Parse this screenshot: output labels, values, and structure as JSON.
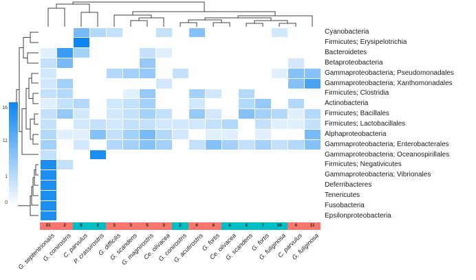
{
  "chart_data": {
    "type": "heatmap",
    "title": "",
    "rows": [
      "Cyanobacteria",
      "Firmicutes; Erysipelotrichia",
      "Bacteroidetes",
      "Betaproteobacteria",
      "Gammaproteobacteria; Pseudomonadales",
      "Gammaproteobacteria; Xanthomonadales",
      "Firmicutes; Clostridia",
      "Actinobacteria",
      "Firmicutes; Bacillales",
      "Firmicutes; Lactobacillales",
      "Alphaproteobacteria",
      "Gammaproteobacteria; Enterobacterales",
      "Gammaproteobacteria; Oceanospirillales",
      "Firmicutes; Negativicutes",
      "Gammaproteobacteria; Vibrionales",
      "Deferribacteres",
      "Tenericutes",
      "Fusobacteria",
      "Epsilonproteobacteria"
    ],
    "columns": [
      "G. septentrionalis",
      "G. conirostris",
      "C. parvulus",
      "P. crassirostris",
      "G. difficilis",
      "G. scandens",
      "G. magnirostris",
      "Ce. olivacea",
      "G. conirostris",
      "G. acutirostris",
      "G. fortis",
      "Ce. olivacea",
      "G. scandens",
      "G. fortis",
      "G. fuliginosa",
      "C. parvulus",
      "G. fuliginosa"
    ],
    "column_sample_counts": [
      31,
      2,
      6,
      3,
      3,
      3,
      5,
      3,
      2,
      6,
      4,
      4,
      3,
      7,
      16,
      4,
      11
    ],
    "column_group_colors": [
      "red",
      "red",
      "teal",
      "teal",
      "red",
      "red",
      "red",
      "red",
      "teal",
      "red",
      "red",
      "teal",
      "teal",
      "teal",
      "teal",
      "red",
      "red"
    ],
    "values": [
      [
        0,
        0,
        9,
        5,
        4,
        0,
        0,
        4,
        0,
        8,
        0,
        0,
        0,
        0,
        3,
        0,
        0
      ],
      [
        0,
        0,
        16,
        0,
        0,
        0,
        0,
        0,
        0,
        0,
        0,
        0,
        0,
        0,
        0,
        0,
        0
      ],
      [
        2,
        13,
        6,
        0,
        0,
        0,
        4,
        2,
        0,
        0,
        0,
        0,
        0,
        0,
        0,
        0,
        0
      ],
      [
        4,
        9,
        0,
        0,
        0,
        0,
        7,
        0,
        0,
        0,
        0,
        0,
        0,
        0,
        0,
        3,
        0
      ],
      [
        3,
        0,
        0,
        0,
        5,
        6,
        7,
        0,
        4,
        0,
        0,
        0,
        0,
        0,
        2,
        8,
        8
      ],
      [
        3,
        6,
        0,
        0,
        0,
        0,
        0,
        3,
        0,
        0,
        0,
        0,
        0,
        0,
        0,
        8,
        12
      ],
      [
        4,
        5,
        0,
        0,
        0,
        2,
        7,
        0,
        0,
        6,
        3,
        0,
        5,
        0,
        0,
        0,
        0
      ],
      [
        2,
        4,
        5,
        0,
        3,
        4,
        6,
        0,
        0,
        3,
        0,
        0,
        5,
        7,
        0,
        5,
        0
      ],
      [
        4,
        7,
        3,
        0,
        3,
        4,
        6,
        4,
        0,
        7,
        3,
        0,
        8,
        6,
        5,
        2,
        5
      ],
      [
        4,
        0,
        3,
        4,
        3,
        4,
        4,
        3,
        3,
        3,
        4,
        5,
        0,
        4,
        2,
        2,
        4
      ],
      [
        5,
        2,
        2,
        8,
        4,
        6,
        9,
        5,
        3,
        0,
        2,
        2,
        0,
        2,
        0,
        0,
        9
      ],
      [
        6,
        0,
        3,
        0,
        5,
        6,
        8,
        6,
        0,
        4,
        8,
        6,
        4,
        6,
        4,
        5,
        8
      ],
      [
        4,
        0,
        0,
        15,
        0,
        0,
        0,
        0,
        0,
        0,
        0,
        0,
        0,
        0,
        0,
        0,
        0
      ],
      [
        15,
        4,
        0,
        0,
        0,
        0,
        0,
        0,
        0,
        0,
        0,
        0,
        0,
        0,
        0,
        0,
        0
      ],
      [
        15,
        0,
        0,
        0,
        0,
        0,
        0,
        0,
        0,
        0,
        0,
        0,
        0,
        0,
        0,
        0,
        0
      ],
      [
        15,
        0,
        0,
        0,
        0,
        0,
        0,
        0,
        0,
        0,
        0,
        0,
        0,
        0,
        0,
        0,
        0
      ],
      [
        15,
        0,
        0,
        0,
        0,
        0,
        0,
        0,
        0,
        0,
        0,
        0,
        0,
        0,
        0,
        0,
        0
      ],
      [
        15,
        0,
        0,
        0,
        0,
        0,
        0,
        0,
        0,
        0,
        0,
        0,
        0,
        0,
        0,
        0,
        0
      ],
      [
        15,
        0,
        0,
        0,
        0,
        0,
        0,
        0,
        0,
        0,
        0,
        0,
        0,
        0,
        0,
        0,
        0
      ]
    ],
    "value_scale": {
      "min": 0,
      "max": 16,
      "legend_ticks": [
        "16",
        "11",
        "1",
        "0"
      ]
    },
    "colors": {
      "cell_low": "#ffffff",
      "cell_high": "#0d85f0",
      "annotation_red": "#f8766d",
      "annotation_teal": "#00bfc4"
    },
    "layout_hints": {
      "row_dendrogram": "left",
      "column_dendrogram": "top",
      "legend_position": "left",
      "grid": false
    }
  }
}
